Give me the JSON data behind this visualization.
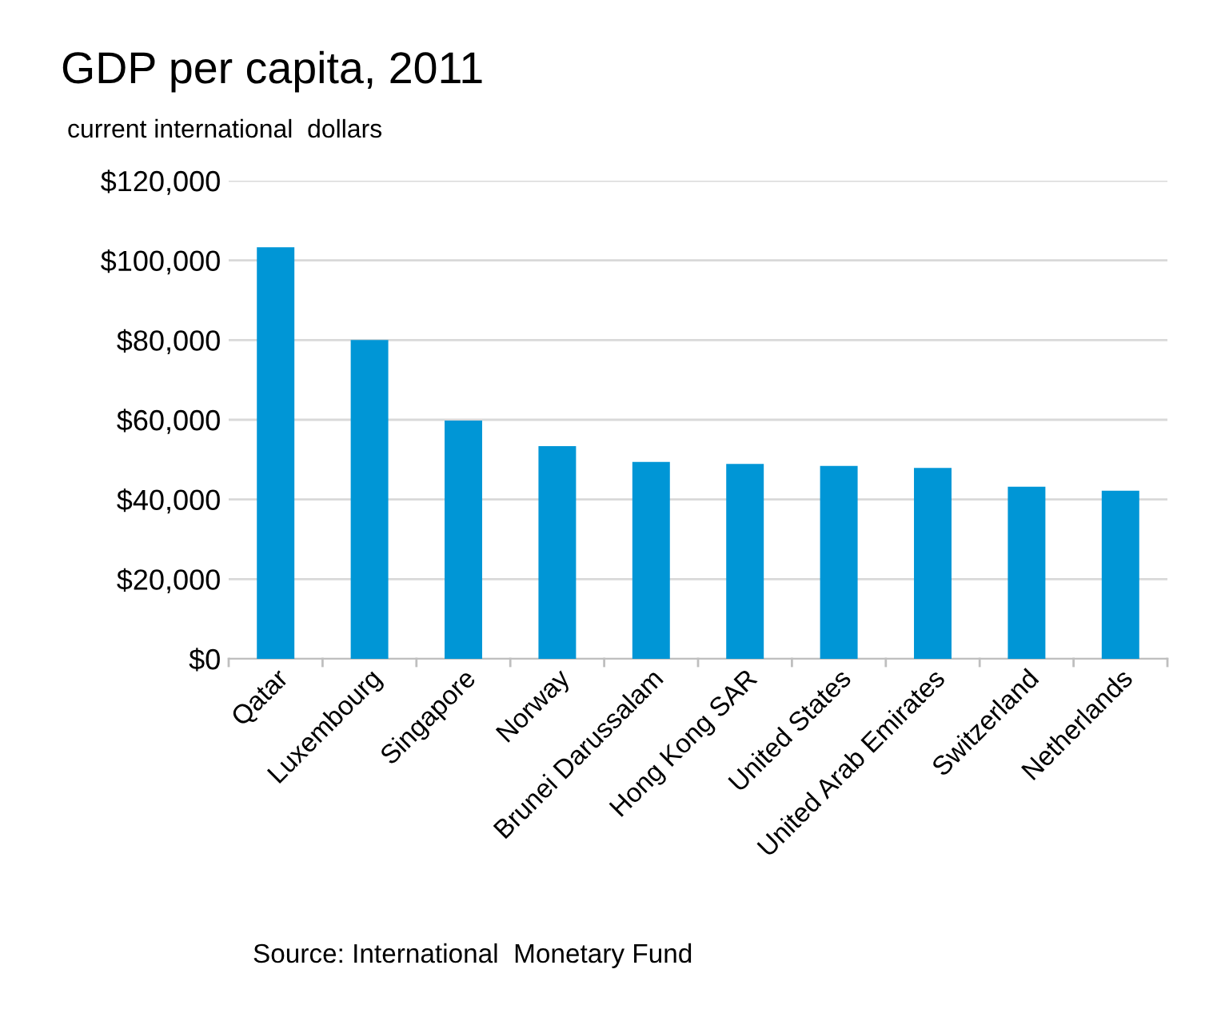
{
  "chart_data": {
    "type": "bar",
    "title": "GDP per capita, 2011",
    "subtitle": "current international  dollars",
    "categories": [
      "Qatar",
      "Luxembourg",
      "Singapore",
      "Norway",
      "Brunei Darussalam",
      "Hong Kong SAR",
      "United States",
      "United Arab Emirates",
      "Switzerland",
      "Netherlands"
    ],
    "values": [
      103300,
      80000,
      59800,
      53400,
      49400,
      48900,
      48400,
      47900,
      43200,
      42200
    ],
    "color": "#0096d6",
    "ylim": [
      0,
      120000
    ],
    "yticks": [
      {
        "value": 0,
        "label": "$0"
      },
      {
        "value": 20000,
        "label": "$20,000"
      },
      {
        "value": 40000,
        "label": "$40,000"
      },
      {
        "value": 60000,
        "label": "$60,000"
      },
      {
        "value": 80000,
        "label": "$80,000"
      },
      {
        "value": 100000,
        "label": "$100,000"
      },
      {
        "value": 120000,
        "label": "$120,000"
      }
    ],
    "grid": "y",
    "annotations": [
      "Source: International  Monetary Fund"
    ]
  }
}
